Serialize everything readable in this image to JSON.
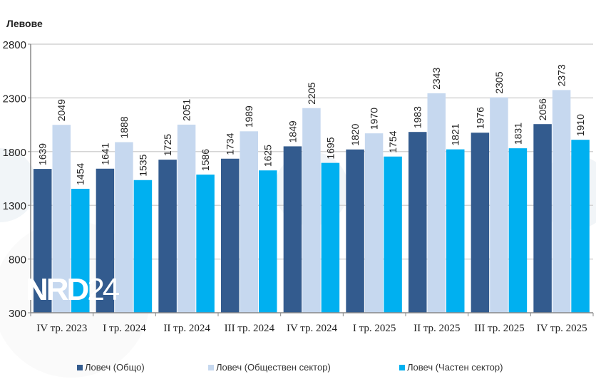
{
  "watermark": {
    "logo_text": "NRD24"
  },
  "chart_data": {
    "type": "bar",
    "ylabel": "Левове",
    "ylim": [
      300,
      2800
    ],
    "yticks": [
      300,
      800,
      1300,
      1800,
      2300,
      2800
    ],
    "grid": true,
    "legend_position": "bottom",
    "categories": [
      "IV тр. 2023",
      "I тр. 2024",
      "II тр. 2024",
      "III тр. 2024",
      "IV тр. 2024",
      "I тр. 2025",
      "II тр. 2025",
      "III тр. 2025",
      "IV тр. 2025"
    ],
    "series": [
      {
        "name": "Ловеч (Общо)",
        "color": "#335b8e",
        "values": [
          1639,
          1641,
          1725,
          1734,
          1849,
          1820,
          1983,
          1976,
          2056
        ]
      },
      {
        "name": "Ловеч (Обществен сектор)",
        "color": "#c6d8ef",
        "values": [
          2049,
          1888,
          2051,
          1989,
          2205,
          1970,
          2343,
          2305,
          2373
        ]
      },
      {
        "name": "Ловеч (Частен сектор)",
        "color": "#00b0f0",
        "values": [
          1454,
          1535,
          1586,
          1625,
          1695,
          1754,
          1821,
          1831,
          1910
        ]
      }
    ]
  }
}
